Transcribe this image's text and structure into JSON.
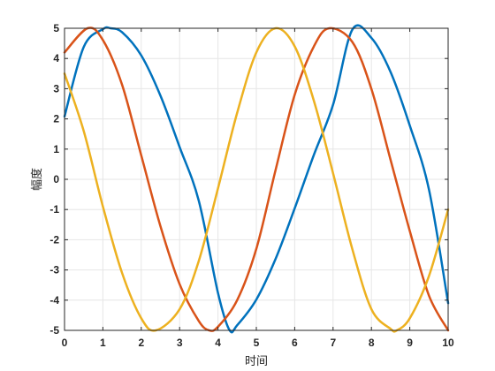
{
  "chart_data": {
    "type": "line",
    "title": "",
    "xlabel": "时间",
    "ylabel": "幅度",
    "xlim": [
      0,
      10
    ],
    "ylim": [
      -5,
      5
    ],
    "xticks": [
      0,
      1,
      2,
      3,
      4,
      5,
      6,
      7,
      8,
      9,
      10
    ],
    "yticks": [
      -5,
      -4,
      -3,
      -2,
      -1,
      0,
      1,
      2,
      3,
      4,
      5
    ],
    "grid": true,
    "legend": "none",
    "series": [
      {
        "color": "#0072BD",
        "x": [
          0,
          0.5,
          1,
          1.2,
          1.5,
          2,
          2.5,
          3,
          3.5,
          4,
          4.3,
          4.5,
          5,
          5.5,
          6,
          6.5,
          7,
          7.5,
          8,
          8.5,
          9,
          9.5,
          10
        ],
        "y": [
          2.08,
          4.38,
          4.97,
          5.0,
          4.87,
          4.1,
          2.77,
          1.07,
          -0.71,
          -3.76,
          -4.99,
          -4.83,
          -3.98,
          -2.64,
          -0.96,
          0.81,
          2.47,
          4.95,
          4.68,
          3.55,
          1.78,
          -0.34,
          -4.1
        ]
      },
      {
        "color": "#D95319",
        "x": [
          0,
          0.6,
          1,
          1.5,
          2,
          2.5,
          3,
          3.5,
          3.77,
          4,
          4.5,
          5,
          5.5,
          6,
          6.5,
          6.9,
          7.5,
          8,
          8.5,
          9,
          9.5,
          10
        ],
        "y": [
          4.2,
          5.0,
          4.61,
          3.13,
          0.79,
          -1.55,
          -3.47,
          -4.69,
          -5.0,
          -4.88,
          -4.0,
          -2.3,
          0.3,
          2.8,
          4.4,
          5.0,
          4.55,
          2.99,
          0.64,
          -1.71,
          -3.85,
          -5.0
        ]
      },
      {
        "color": "#EDB120",
        "x": [
          0,
          0.5,
          1,
          1.5,
          2,
          2.38,
          3,
          3.5,
          4,
          4.5,
          5,
          5.5,
          6,
          6.5,
          7,
          7.5,
          8,
          8.5,
          8.66,
          9,
          9.5,
          10
        ],
        "y": [
          3.5,
          1.6,
          -0.9,
          -3.1,
          -4.6,
          -5.0,
          -4.3,
          -2.7,
          -0.3,
          2.2,
          4.2,
          5.0,
          4.4,
          2.6,
          0.2,
          -2.3,
          -4.3,
          -4.95,
          -5.0,
          -4.6,
          -3.2,
          -1.0
        ]
      }
    ]
  }
}
